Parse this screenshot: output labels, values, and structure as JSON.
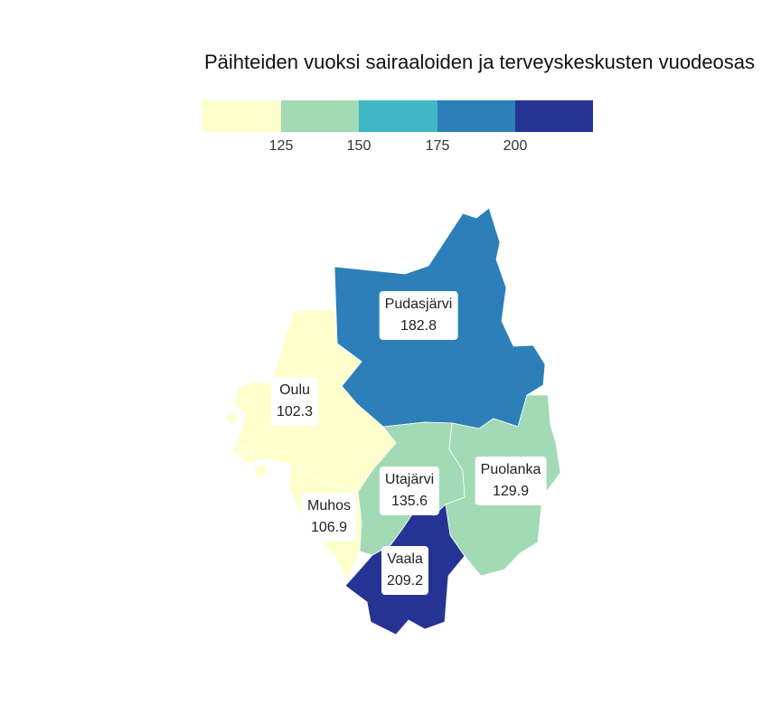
{
  "title": "Päihteiden vuoksi sairaaloiden ja terveyskeskusten vuodeosas",
  "legend": {
    "colors": [
      "#ffffcc",
      "#a1dab4",
      "#41b6c4",
      "#2c7fb8",
      "#253494"
    ],
    "ticks": [
      "125",
      "150",
      "175",
      "200"
    ]
  },
  "municipalities": [
    {
      "name": "Pudasjärvi",
      "value": "182.8",
      "color": "#2c7fb8"
    },
    {
      "name": "Oulu",
      "value": "102.3",
      "color": "#ffffcc"
    },
    {
      "name": "Utajärvi",
      "value": "135.6",
      "color": "#a1dab4"
    },
    {
      "name": "Puolanka",
      "value": "129.9",
      "color": "#a1dab4"
    },
    {
      "name": "Muhos",
      "value": "106.9",
      "color": "#ffffcc"
    },
    {
      "name": "Vaala",
      "value": "209.2",
      "color": "#253494"
    }
  ]
}
